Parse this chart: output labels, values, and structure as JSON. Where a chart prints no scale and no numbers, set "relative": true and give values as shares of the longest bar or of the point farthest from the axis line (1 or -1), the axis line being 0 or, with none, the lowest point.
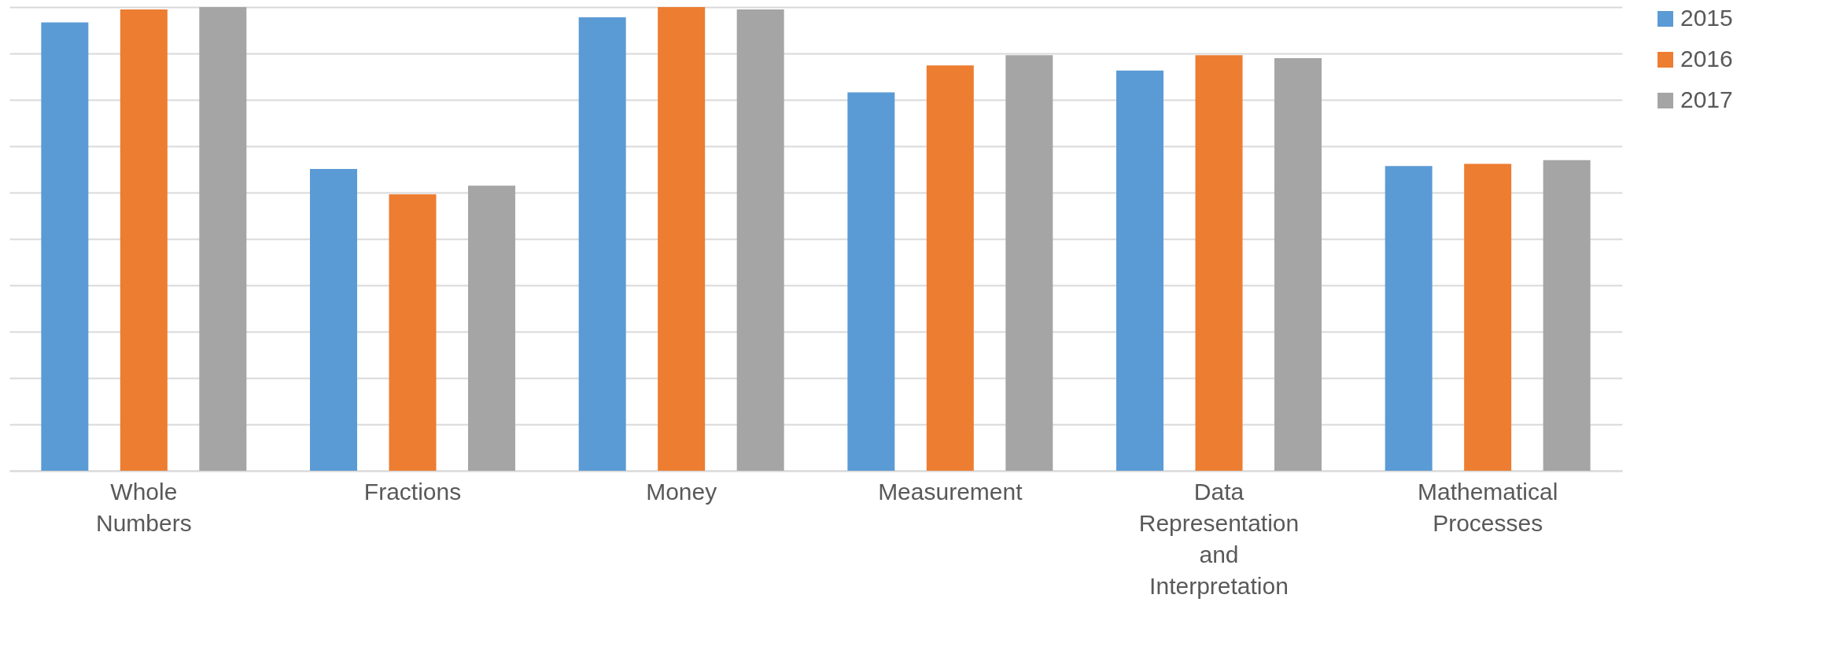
{
  "chart_data": {
    "type": "bar",
    "relative": true,
    "grid": "y",
    "legend": "right",
    "categories": [
      "Whole Numbers",
      "Fractions",
      "Money",
      "Measurement",
      "Data Representation and Interpretation",
      "Mathematical Processes"
    ],
    "series": [
      {
        "name": "2015",
        "color": "#5b9bd5",
        "values": [
          0.967,
          0.651,
          0.978,
          0.816,
          0.863,
          0.657
        ]
      },
      {
        "name": "2016",
        "color": "#ed7d31",
        "values": [
          0.995,
          0.596,
          1.0,
          0.874,
          0.896,
          0.662
        ]
      },
      {
        "name": "2017",
        "color": "#a5a5a5",
        "values": [
          1.0,
          0.615,
          0.995,
          0.896,
          0.89,
          0.67
        ]
      }
    ]
  }
}
